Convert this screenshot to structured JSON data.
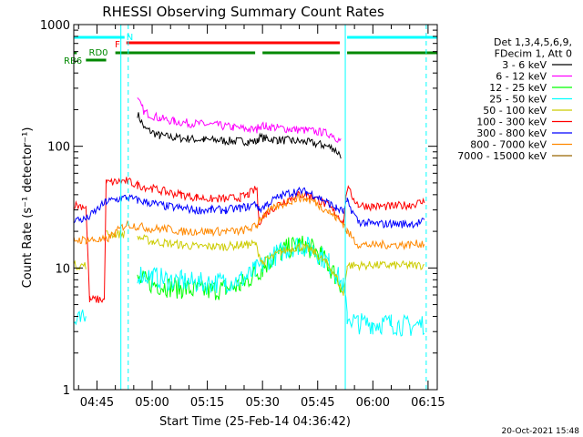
{
  "chart_data": {
    "type": "line",
    "title": "RHESSI Observing Summary Count Rates",
    "xlabel": "Start Time (25-Feb-14 04:36:42)",
    "ylabel": "Count Rate (s⁻¹ detector⁻¹)",
    "yscale": "log",
    "ylim": [
      1,
      1000
    ],
    "xlim_min": [
      38.7,
      137.5
    ],
    "x_tick_labels": [
      {
        "t": 45,
        "label": "04:45"
      },
      {
        "t": 60,
        "label": "05:00"
      },
      {
        "t": 75,
        "label": "05:15"
      },
      {
        "t": 90,
        "label": "05:30"
      },
      {
        "t": 105,
        "label": "05:45"
      },
      {
        "t": 120,
        "label": "06:00"
      },
      {
        "t": 135,
        "label": "06:15"
      }
    ],
    "y_tick_labels": [
      {
        "v": 1,
        "label": "1"
      },
      {
        "v": 10,
        "label": "10"
      },
      {
        "v": 100,
        "label": "100"
      },
      {
        "v": 1000,
        "label": "1000"
      }
    ],
    "legend_header": [
      "Det 1,3,4,5,6,9,",
      "FDecim 1, Att 0"
    ],
    "legend_placement": "right",
    "series": [
      {
        "name": "3 - 6 keV",
        "color": "#000000",
        "x": [
          52.5,
          55.5,
          56,
          58,
          62,
          66,
          70,
          74,
          78,
          82,
          86,
          88.5,
          89,
          91,
          94,
          98,
          102,
          106,
          109,
          111.3
        ],
        "values": [
          null,
          null,
          185,
          140,
          122,
          118,
          115,
          113,
          112,
          110,
          110,
          109,
          118,
          116,
          113,
          111,
          108,
          103,
          97,
          85
        ]
      },
      {
        "name": "6 - 12 keV",
        "color": "#ff00ff",
        "x": [
          52.5,
          55.5,
          56,
          58,
          62,
          66,
          70,
          74,
          78,
          82,
          86,
          88.5,
          89,
          91,
          94,
          98,
          102,
          106,
          109,
          111.3
        ],
        "values": [
          null,
          null,
          240,
          190,
          170,
          160,
          155,
          152,
          148,
          143,
          138,
          136,
          148,
          146,
          142,
          138,
          135,
          130,
          125,
          110
        ]
      },
      {
        "name": "12 - 25 keV",
        "color": "#00ff00",
        "x": [
          52.5,
          53,
          56,
          60,
          64,
          68,
          72,
          76,
          80,
          84,
          86,
          88,
          90,
          92,
          95,
          98,
          100,
          102,
          104,
          106,
          108,
          110,
          112,
          113,
          116,
          120,
          125,
          130,
          134
        ],
        "values": [
          null,
          null,
          8,
          7.5,
          7,
          6.8,
          6.5,
          6.5,
          6.8,
          7.2,
          8,
          9,
          10,
          11.5,
          13.5,
          15,
          15.5,
          15,
          14,
          12.5,
          10.5,
          8.5,
          6.8,
          null,
          null,
          null,
          null,
          null,
          null
        ]
      },
      {
        "name": "25 - 50 keV",
        "color": "#00ffff",
        "x": [
          38.7,
          42,
          43,
          47,
          47.5,
          52,
          52.5,
          53,
          56,
          60,
          64,
          68,
          72,
          76,
          80,
          84,
          86,
          88,
          90,
          92,
          95,
          98,
          100,
          102,
          104,
          106,
          108,
          110,
          112,
          113,
          116,
          120,
          125,
          130,
          134
        ],
        "values": [
          3.5,
          3.8,
          null,
          null,
          null,
          null,
          null,
          null,
          9,
          8.5,
          8,
          7.8,
          7.5,
          7.5,
          7.7,
          8,
          8.5,
          9.5,
          10.5,
          12,
          13.5,
          15,
          15.5,
          15,
          14,
          12.5,
          11,
          9,
          7,
          4,
          3.5,
          3.5,
          3.5,
          3.3,
          3.5
        ]
      },
      {
        "name": "50 - 100 keV",
        "color": "#cccc00",
        "x": [
          38.7,
          42,
          43,
          46,
          47,
          47.5,
          52.5,
          53,
          56,
          60,
          64,
          68,
          72,
          76,
          80,
          84,
          86,
          88,
          90,
          92,
          95,
          98,
          100,
          102,
          104,
          106,
          108,
          110,
          112,
          113,
          116,
          120,
          125,
          130,
          134
        ],
        "values": [
          10.5,
          10.5,
          null,
          null,
          null,
          19,
          19,
          null,
          18,
          16.5,
          16,
          15.5,
          15,
          15,
          15,
          15.5,
          15.5,
          15.8,
          11,
          12,
          13.5,
          14.5,
          15,
          14.5,
          13.5,
          12,
          10.5,
          8.5,
          6,
          10.5,
          10.5,
          10.5,
          10.5,
          10.5,
          10.5
        ]
      },
      {
        "name": "100 - 300 keV",
        "color": "#ff0000",
        "x": [
          38.7,
          42,
          43,
          47,
          47.5,
          53,
          56,
          60,
          64,
          68,
          72,
          76,
          80,
          84,
          86,
          88.5,
          89,
          91,
          94,
          98,
          100,
          102,
          104,
          106,
          108,
          110,
          112,
          113,
          116,
          120,
          125,
          130,
          134
        ],
        "values": [
          33,
          32,
          5.5,
          5.5,
          50,
          52,
          48,
          45,
          42,
          40,
          38,
          37,
          37,
          38,
          40,
          45,
          24,
          28,
          33,
          38,
          40,
          40,
          38,
          35,
          32,
          28,
          24,
          45,
          33,
          32,
          32,
          33,
          35
        ]
      },
      {
        "name": "300 - 800 keV",
        "color": "#0000ff",
        "x": [
          38.7,
          42,
          47.5,
          53,
          56,
          60,
          64,
          68,
          72,
          76,
          80,
          84,
          86,
          88.5,
          89,
          91,
          94,
          98,
          100,
          102,
          104,
          106,
          108,
          110,
          112,
          113,
          116,
          120,
          125,
          130,
          134
        ],
        "values": [
          25,
          25,
          35,
          38,
          36,
          34,
          32,
          31,
          30,
          30,
          30,
          31,
          32,
          34,
          30,
          33,
          38,
          42,
          43,
          42,
          40,
          37,
          34,
          31,
          29,
          35,
          24,
          23,
          23,
          23,
          24
        ]
      },
      {
        "name": "800 - 7000 keV",
        "color": "#ff8800",
        "x": [
          38.7,
          42,
          47.5,
          53,
          56,
          60,
          64,
          68,
          72,
          76,
          80,
          84,
          86,
          88.5,
          89,
          91,
          94,
          98,
          100,
          102,
          104,
          106,
          108,
          110,
          112,
          113,
          116,
          120,
          125,
          130,
          134
        ],
        "values": [
          17,
          17,
          17,
          23,
          22,
          21,
          21,
          20,
          20,
          20,
          20,
          20,
          21,
          22,
          25,
          28,
          32,
          36,
          38,
          37,
          35,
          32,
          29,
          26,
          23,
          20,
          15.5,
          15.5,
          15.5,
          15.5,
          16
        ]
      },
      {
        "name": "7000 - 15000 keV",
        "color": "#996600",
        "x": [],
        "values": []
      }
    ],
    "state_bars": [
      {
        "label": "N",
        "color": "#00ffff",
        "segments": [
          [
            38.7,
            52.5
          ],
          [
            113,
            137.5
          ]
        ]
      },
      {
        "label": "F",
        "color": "#ff0000",
        "segments": [
          [
            53,
            111
          ]
        ]
      },
      {
        "label": "RD0",
        "color": "#008800",
        "segments": [
          [
            38.7,
            39.5
          ],
          [
            50,
            88
          ],
          [
            90,
            111
          ],
          [
            113,
            137.5
          ]
        ]
      },
      {
        "label": "RB6",
        "color": "#008800",
        "segments": [
          [
            42,
            47.5
          ]
        ]
      }
    ],
    "vlines_cyan_solid": [
      38.7,
      51.5,
      112.5
    ],
    "vlines_cyan_dashed": [
      53.5,
      134.5
    ]
  },
  "footer_timestamp": "20-Oct-2021 15:48"
}
